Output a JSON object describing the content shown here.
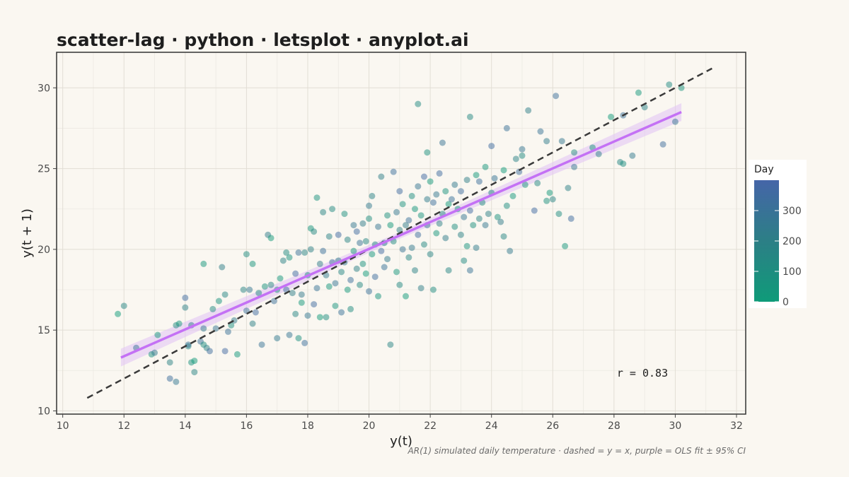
{
  "chart_data": {
    "type": "scatter",
    "title": "scatter-lag · python · letsplot · anyplot.ai",
    "xlabel": "y(t)",
    "ylabel": "y(t + 1)",
    "caption": "AR(1) simulated daily temperature · dashed = y = x, purple = OLS fit ± 95% CI",
    "annotation": "r = 0.83",
    "xlim": [
      9.8,
      32.3
    ],
    "ylim": [
      9.8,
      32.2
    ],
    "x_ticks": [
      10,
      12,
      14,
      16,
      18,
      20,
      22,
      24,
      26,
      28,
      30,
      32
    ],
    "y_ticks": [
      10,
      15,
      20,
      25,
      30
    ],
    "grid": true,
    "legend": {
      "title": "Day",
      "position": "right",
      "range": [
        0,
        400
      ],
      "ticks": [
        0,
        100,
        200,
        300
      ],
      "colors": {
        "low": "#0f9b79",
        "mid": "#2c7f86",
        "high": "#4565a8"
      }
    },
    "identity_line": {
      "from": [
        10.8,
        10.8
      ],
      "to": [
        31.2,
        31.2
      ],
      "style": "dashed",
      "color": "#3a3a3a"
    },
    "fit_line": {
      "from": [
        11.9,
        13.3
      ],
      "to": [
        30.2,
        28.5
      ],
      "color": "#c471f5",
      "ci_color": "#e3c6f5"
    },
    "points": [
      [
        11.8,
        16
      ],
      [
        12,
        16.5
      ],
      [
        12.4,
        13.9
      ],
      [
        12.9,
        13.5
      ],
      [
        13,
        13.6
      ],
      [
        13.1,
        14.7
      ],
      [
        13.5,
        13
      ],
      [
        13.5,
        12
      ],
      [
        13.7,
        15.3
      ],
      [
        13.7,
        11.8
      ],
      [
        13.8,
        15.4
      ],
      [
        14,
        16.4
      ],
      [
        14,
        17
      ],
      [
        14.1,
        14
      ],
      [
        14.1,
        14.1
      ],
      [
        14.2,
        13
      ],
      [
        14.2,
        15.3
      ],
      [
        14.3,
        13.1
      ],
      [
        14.3,
        12.4
      ],
      [
        14.5,
        14.3
      ],
      [
        14.6,
        14.1
      ],
      [
        14.6,
        15.1
      ],
      [
        14.6,
        19.1
      ],
      [
        14.7,
        13.9
      ],
      [
        14.8,
        13.7
      ],
      [
        14.9,
        16.3
      ],
      [
        15,
        15.1
      ],
      [
        15.1,
        16.8
      ],
      [
        15.2,
        18.9
      ],
      [
        15.3,
        13.7
      ],
      [
        15.3,
        17.2
      ],
      [
        15.4,
        14.9
      ],
      [
        15.5,
        15.3
      ],
      [
        15.6,
        15.6
      ],
      [
        15.7,
        13.5
      ],
      [
        15.9,
        17.5
      ],
      [
        16,
        16.2
      ],
      [
        16,
        19.7
      ],
      [
        16.1,
        17.5
      ],
      [
        16.2,
        19.1
      ],
      [
        16.2,
        15.4
      ],
      [
        16.3,
        16.1
      ],
      [
        16.4,
        17.3
      ],
      [
        16.5,
        14.1
      ],
      [
        16.6,
        17.7
      ],
      [
        16.7,
        20.9
      ],
      [
        16.8,
        20.7
      ],
      [
        16.8,
        17.8
      ],
      [
        16.9,
        16.8
      ],
      [
        17,
        17.5
      ],
      [
        17,
        14.5
      ],
      [
        17.1,
        18.2
      ],
      [
        17.2,
        19.3
      ],
      [
        17.3,
        17.5
      ],
      [
        17.3,
        19.8
      ],
      [
        17.4,
        14.7
      ],
      [
        17.4,
        19.5
      ],
      [
        17.5,
        17.3
      ],
      [
        17.6,
        18.5
      ],
      [
        17.6,
        16
      ],
      [
        17.7,
        19.8
      ],
      [
        17.7,
        14.5
      ],
      [
        17.8,
        17.2
      ],
      [
        17.8,
        16.7
      ],
      [
        17.9,
        19.8
      ],
      [
        17.9,
        14.2
      ],
      [
        18,
        18.4
      ],
      [
        18,
        15.9
      ],
      [
        18.1,
        21.3
      ],
      [
        18.1,
        20
      ],
      [
        18.2,
        16.6
      ],
      [
        18.2,
        21.1
      ],
      [
        18.3,
        17.6
      ],
      [
        18.3,
        23.2
      ],
      [
        18.4,
        19.1
      ],
      [
        18.4,
        15.8
      ],
      [
        18.5,
        22.3
      ],
      [
        18.5,
        19.9
      ],
      [
        18.6,
        15.8
      ],
      [
        18.6,
        18.4
      ],
      [
        18.7,
        17.7
      ],
      [
        18.7,
        20.8
      ],
      [
        18.8,
        19.2
      ],
      [
        18.8,
        22.5
      ],
      [
        18.9,
        17.9
      ],
      [
        18.9,
        16.5
      ],
      [
        19,
        19.3
      ],
      [
        19,
        20.9
      ],
      [
        19.1,
        18.6
      ],
      [
        19.1,
        16.1
      ],
      [
        19.2,
        22.2
      ],
      [
        19.2,
        19.2
      ],
      [
        19.3,
        17.5
      ],
      [
        19.3,
        20.6
      ],
      [
        19.4,
        18.1
      ],
      [
        19.4,
        16.3
      ],
      [
        19.5,
        21.5
      ],
      [
        19.5,
        19.9
      ],
      [
        19.6,
        18.8
      ],
      [
        19.6,
        21.1
      ],
      [
        19.7,
        17.8
      ],
      [
        19.7,
        20.4
      ],
      [
        19.8,
        19.1
      ],
      [
        19.8,
        21.6
      ],
      [
        19.9,
        18.5
      ],
      [
        19.9,
        20.5
      ],
      [
        20,
        17.4
      ],
      [
        20,
        21.9
      ],
      [
        20,
        22.7
      ],
      [
        20.1,
        19.7
      ],
      [
        20.1,
        23.3
      ],
      [
        20.2,
        18.3
      ],
      [
        20.2,
        20.3
      ],
      [
        20.3,
        21.4
      ],
      [
        20.3,
        17.1
      ],
      [
        20.4,
        24.5
      ],
      [
        20.4,
        19.9
      ],
      [
        20.5,
        20.4
      ],
      [
        20.5,
        18.9
      ],
      [
        20.6,
        22.1
      ],
      [
        20.6,
        19.4
      ],
      [
        20.7,
        21.5
      ],
      [
        20.7,
        14.1
      ],
      [
        20.8,
        24.8
      ],
      [
        20.8,
        20.5
      ],
      [
        20.9,
        22.3
      ],
      [
        20.9,
        18.6
      ],
      [
        21,
        21.2
      ],
      [
        21,
        23.6
      ],
      [
        21,
        17.8
      ],
      [
        21.1,
        20
      ],
      [
        21.1,
        22.8
      ],
      [
        21.2,
        21.5
      ],
      [
        21.2,
        17.1
      ],
      [
        21.3,
        19.5
      ],
      [
        21.3,
        21.8
      ],
      [
        21.4,
        23.3
      ],
      [
        21.4,
        20.1
      ],
      [
        21.5,
        22.5
      ],
      [
        21.5,
        18.7
      ],
      [
        21.6,
        20.9
      ],
      [
        21.6,
        29
      ],
      [
        21.6,
        23.9
      ],
      [
        21.7,
        22.1
      ],
      [
        21.7,
        17.6
      ],
      [
        21.8,
        24.5
      ],
      [
        21.8,
        20.3
      ],
      [
        21.9,
        21.5
      ],
      [
        21.9,
        26
      ],
      [
        21.9,
        23.1
      ],
      [
        22,
        24.2
      ],
      [
        22,
        19.7
      ],
      [
        22.1,
        22.9
      ],
      [
        22.1,
        17.5
      ],
      [
        22.2,
        23.4
      ],
      [
        22.2,
        21
      ],
      [
        22.3,
        21.6
      ],
      [
        22.3,
        24.7
      ],
      [
        22.4,
        22.2
      ],
      [
        22.4,
        26.6
      ],
      [
        22.5,
        23.6
      ],
      [
        22.5,
        20.7
      ],
      [
        22.6,
        22.8
      ],
      [
        22.6,
        18.7
      ],
      [
        22.7,
        23.1
      ],
      [
        22.8,
        21.4
      ],
      [
        22.8,
        24
      ],
      [
        22.9,
        22.5
      ],
      [
        23,
        20.9
      ],
      [
        23,
        23.6
      ],
      [
        23.1,
        19.3
      ],
      [
        23.1,
        22
      ],
      [
        23.2,
        20.2
      ],
      [
        23.2,
        24.3
      ],
      [
        23.3,
        22.4
      ],
      [
        23.3,
        28.2
      ],
      [
        23.3,
        18.7
      ],
      [
        23.4,
        21.5
      ],
      [
        23.5,
        20.1
      ],
      [
        23.5,
        24.6
      ],
      [
        23.6,
        21.9
      ],
      [
        23.6,
        24.2
      ],
      [
        23.7,
        22.9
      ],
      [
        23.8,
        21.5
      ],
      [
        23.8,
        25.1
      ],
      [
        23.9,
        22.2
      ],
      [
        24,
        26.4
      ],
      [
        24,
        23.5
      ],
      [
        24.1,
        24.4
      ],
      [
        24.2,
        22
      ],
      [
        24.3,
        21.7
      ],
      [
        24.4,
        24.9
      ],
      [
        24.4,
        20.8
      ],
      [
        24.5,
        27.5
      ],
      [
        24.5,
        22.7
      ],
      [
        24.6,
        19.9
      ],
      [
        24.7,
        23.3
      ],
      [
        24.8,
        25.6
      ],
      [
        24.9,
        24.8
      ],
      [
        25,
        25.8
      ],
      [
        25,
        26.2
      ],
      [
        25.1,
        24
      ],
      [
        25.2,
        28.6
      ],
      [
        25.4,
        22.4
      ],
      [
        25.5,
        24.1
      ],
      [
        25.6,
        27.3
      ],
      [
        25.8,
        23
      ],
      [
        25.8,
        26.7
      ],
      [
        25.9,
        23.5
      ],
      [
        26,
        23.1
      ],
      [
        26.1,
        29.5
      ],
      [
        26.2,
        22.2
      ],
      [
        26.3,
        26.7
      ],
      [
        26.4,
        20.2
      ],
      [
        26.5,
        23.8
      ],
      [
        26.6,
        21.9
      ],
      [
        26.7,
        26
      ],
      [
        26.7,
        25.1
      ],
      [
        27.3,
        26.3
      ],
      [
        27.5,
        25.9
      ],
      [
        27.9,
        28.2
      ],
      [
        28.2,
        25.4
      ],
      [
        28.3,
        28.3
      ],
      [
        28.3,
        25.3
      ],
      [
        28.6,
        25.8
      ],
      [
        28.8,
        29.7
      ],
      [
        29,
        28.8
      ],
      [
        29.6,
        26.5
      ],
      [
        29.8,
        30.2
      ],
      [
        30,
        27.9
      ],
      [
        30.2,
        30
      ]
    ]
  }
}
